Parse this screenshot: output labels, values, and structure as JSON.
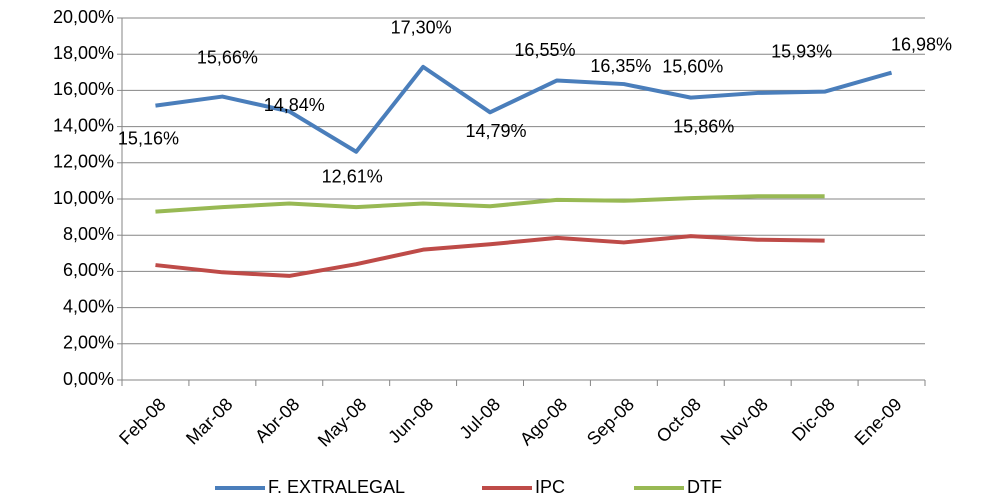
{
  "chart_data": {
    "type": "line",
    "categories": [
      "Feb-08",
      "Mar-08",
      "Abr-08",
      "May-08",
      "Jun-08",
      "Jul-08",
      "Ago-08",
      "Sep-08",
      "Oct-08",
      "Nov-08",
      "Dic-08",
      "Ene-09"
    ],
    "series": [
      {
        "name": "F. EXTRALEGAL",
        "color": "#4a7ebb",
        "values": [
          15.16,
          15.66,
          14.84,
          12.61,
          17.3,
          14.79,
          16.55,
          16.35,
          15.6,
          15.86,
          15.93,
          16.98
        ],
        "value_labels": [
          "15,16%",
          "15,66%",
          "14,84%",
          "12,61%",
          "17,30%",
          "14,79%",
          "16,55%",
          "16,35%",
          "15,60%",
          "15,86%",
          "15,93%",
          "16,98%"
        ]
      },
      {
        "name": "IPC",
        "color": "#be4b48",
        "values": [
          6.35,
          5.95,
          5.75,
          6.4,
          7.2,
          7.5,
          7.85,
          7.6,
          7.95,
          7.75,
          7.7,
          null
        ]
      },
      {
        "name": "DTF",
        "color": "#98b954",
        "values": [
          9.3,
          9.55,
          9.75,
          9.55,
          9.75,
          9.6,
          9.95,
          9.9,
          10.05,
          10.15,
          10.15,
          null
        ]
      }
    ],
    "ylim": [
      0,
      20
    ],
    "yticks": [
      {
        "value": 0,
        "label": "0,00%"
      },
      {
        "value": 2,
        "label": "2,00%"
      },
      {
        "value": 4,
        "label": "4,00%"
      },
      {
        "value": 6,
        "label": "6,00%"
      },
      {
        "value": 8,
        "label": "8,00%"
      },
      {
        "value": 10,
        "label": "10,00%"
      },
      {
        "value": 12,
        "label": "12,00%"
      },
      {
        "value": 14,
        "label": "14,00%"
      },
      {
        "value": 16,
        "label": "16,00%"
      },
      {
        "value": 18,
        "label": "18,00%"
      },
      {
        "value": 20,
        "label": "20,00%"
      }
    ],
    "grid": true,
    "legend": "bottom"
  }
}
